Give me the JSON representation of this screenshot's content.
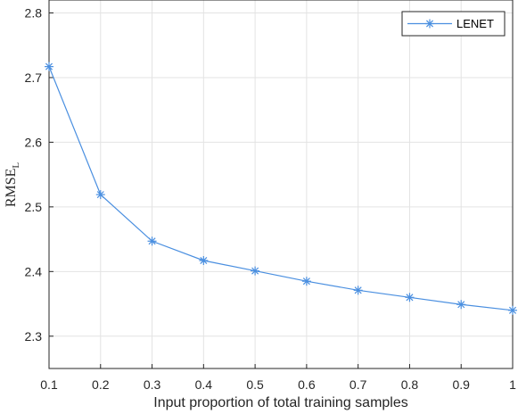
{
  "chart_data": {
    "type": "line",
    "xlabel": "Input proportion of total training samples",
    "ylabel": {
      "main": "RMSE",
      "sub": "L"
    },
    "xlim": [
      0.1,
      1.0
    ],
    "ylim": [
      2.25,
      2.82
    ],
    "xticks": [
      "0.1",
      "0.2",
      "0.3",
      "0.4",
      "0.5",
      "0.6",
      "0.7",
      "0.8",
      "0.9",
      "1"
    ],
    "xtick_values": [
      0.1,
      0.2,
      0.3,
      0.4,
      0.5,
      0.6,
      0.7,
      0.8,
      0.9,
      1.0
    ],
    "yticks": [
      "2.3",
      "2.4",
      "2.5",
      "2.6",
      "2.7",
      "2.8"
    ],
    "ytick_values": [
      2.3,
      2.4,
      2.5,
      2.6,
      2.7,
      2.8
    ],
    "grid": true,
    "legend_position": "top-right",
    "series": [
      {
        "name": "LENET",
        "color": "#4a8fe0",
        "marker": "asterisk",
        "x": [
          0.1,
          0.2,
          0.3,
          0.4,
          0.5,
          0.6,
          0.7,
          0.8,
          0.9,
          1.0
        ],
        "y": [
          2.717,
          2.519,
          2.447,
          2.417,
          2.401,
          2.385,
          2.371,
          2.36,
          2.349,
          2.34
        ]
      }
    ]
  }
}
